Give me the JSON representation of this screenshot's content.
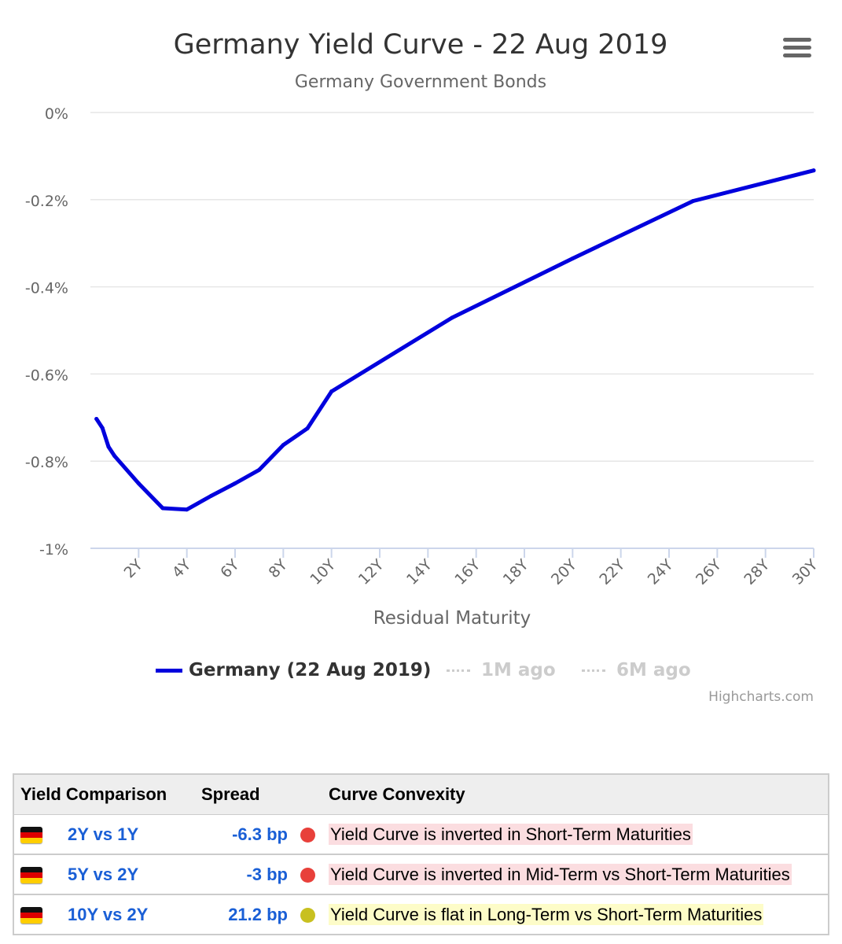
{
  "chart_data": {
    "type": "line",
    "title": "Germany Yield Curve - 22 Aug 2019",
    "subtitle": "Germany Government Bonds",
    "xlabel": "Residual Maturity",
    "ylabel": "",
    "x_ticks": [
      "2Y",
      "4Y",
      "6Y",
      "8Y",
      "10Y",
      "12Y",
      "14Y",
      "16Y",
      "18Y",
      "20Y",
      "22Y",
      "24Y",
      "26Y",
      "28Y",
      "30Y"
    ],
    "y_ticks": [
      "0%",
      "-0.2%",
      "-0.4%",
      "-0.6%",
      "-0.8%",
      "-1%"
    ],
    "xlim": [
      0,
      30
    ],
    "ylim": [
      -1,
      0
    ],
    "grid": true,
    "legend_position": "bottom",
    "series": [
      {
        "name": "Germany (22 Aug 2019)",
        "color": "#0000dd",
        "visible": true,
        "x": [
          0.25,
          0.5,
          0.75,
          1,
          2,
          3,
          4,
          5,
          6,
          7,
          8,
          9,
          10,
          15,
          20,
          25,
          30
        ],
        "y": [
          -0.703,
          -0.724,
          -0.767,
          -0.788,
          -0.851,
          -0.908,
          -0.911,
          -0.88,
          -0.851,
          -0.82,
          -0.763,
          -0.725,
          -0.64,
          -0.471,
          -0.335,
          -0.203,
          -0.133
        ]
      },
      {
        "name": "1M ago",
        "visible": false,
        "color": "#cccccc"
      },
      {
        "name": "6M ago",
        "visible": false,
        "color": "#cccccc"
      }
    ],
    "credit": "Highcharts.com"
  },
  "table": {
    "headers": [
      "Yield Comparison",
      "Spread",
      "Curve Convexity"
    ],
    "rows": [
      {
        "comparison": "2Y vs 1Y",
        "spread": "-6.3 bp",
        "dot_color": "#e8403a",
        "highlight": "#fbdde0",
        "description": "Yield Curve is inverted in Short-Term Maturities"
      },
      {
        "comparison": "5Y vs 2Y",
        "spread": "-3 bp",
        "dot_color": "#e8403a",
        "highlight": "#fbdde0",
        "description": "Yield Curve is inverted in Mid-Term vs Short-Term Maturities"
      },
      {
        "comparison": "10Y vs 2Y",
        "spread": "21.2 bp",
        "dot_color": "#c8c020",
        "highlight": "#fdfcc8",
        "description": "Yield Curve is flat in Long-Term vs Short-Term Maturities"
      }
    ]
  },
  "icons": {
    "menu": "hamburger-menu-icon",
    "flag": "germany-flag-icon"
  }
}
